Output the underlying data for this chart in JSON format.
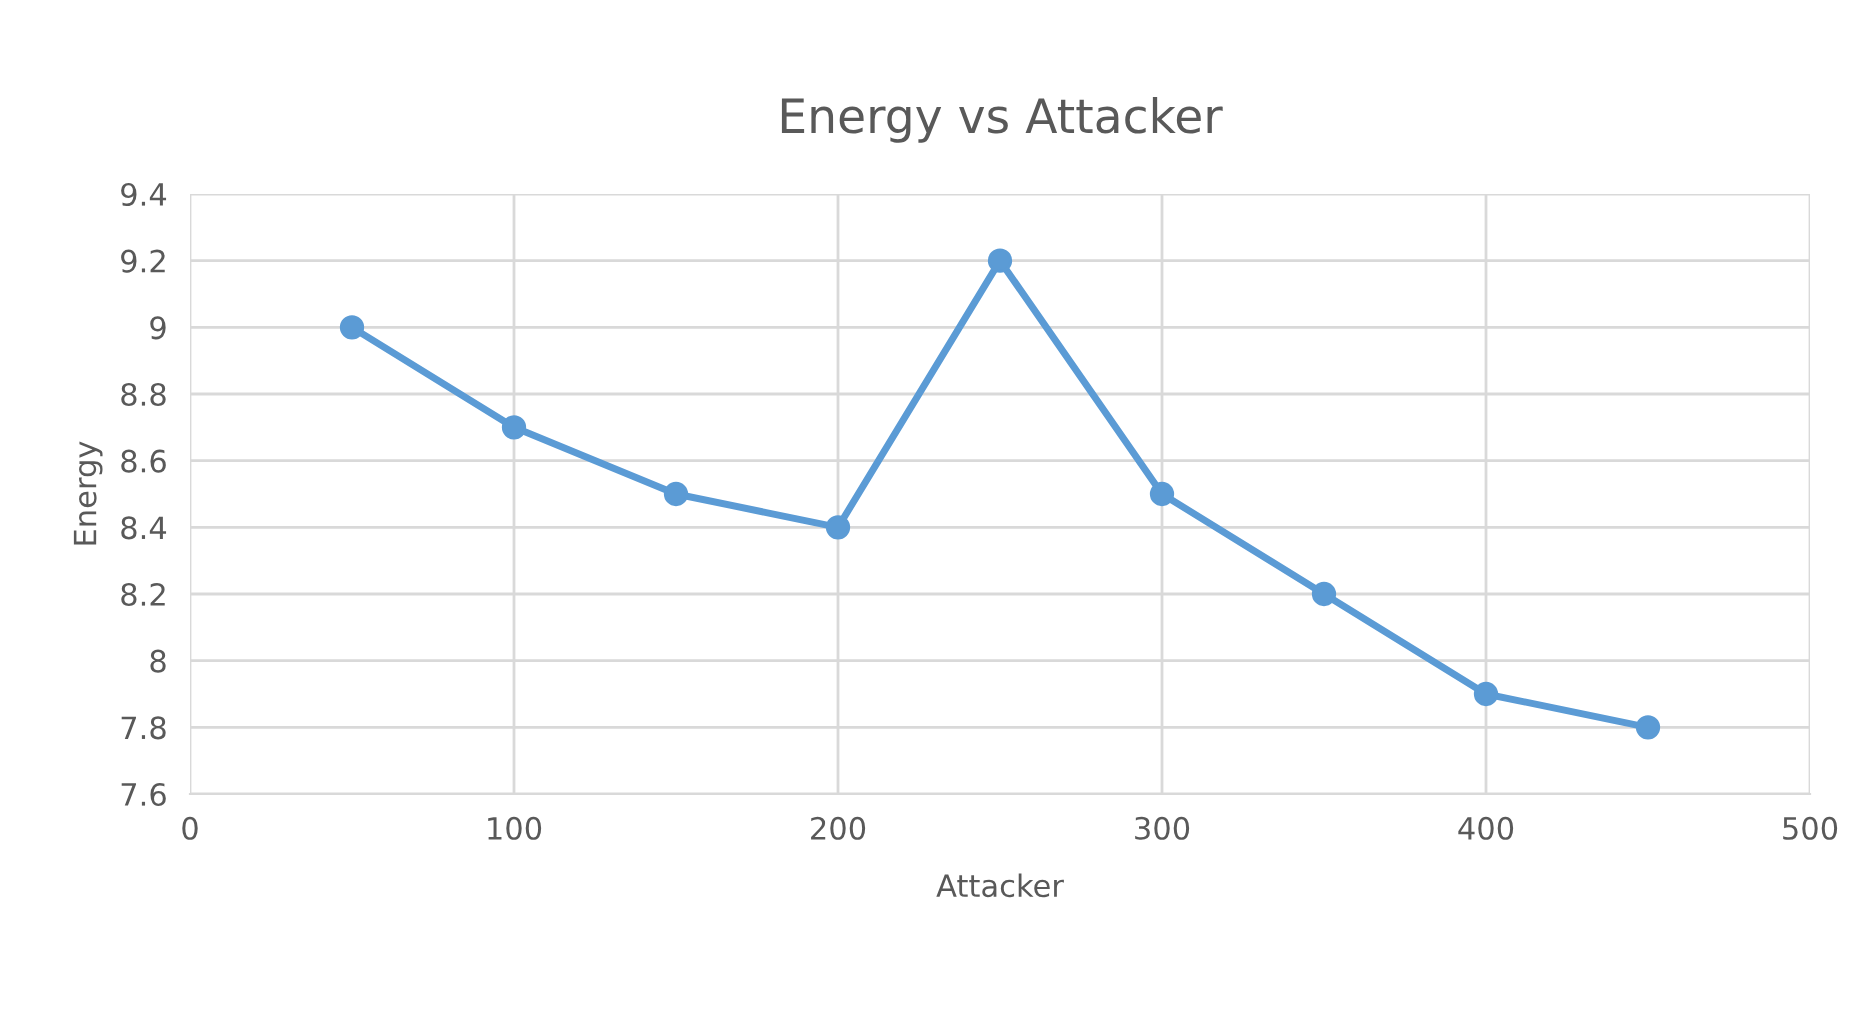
{
  "chart_data": {
    "type": "line",
    "title": "Energy vs Attacker",
    "xlabel": "Attacker",
    "ylabel": "Energy",
    "x": [
      50,
      100,
      150,
      200,
      250,
      300,
      350,
      400,
      450
    ],
    "series": [
      {
        "color": "#5b9bd5",
        "values": [
          9.0,
          8.7,
          8.5,
          8.4,
          9.2,
          8.5,
          8.2,
          7.9,
          7.8
        ]
      }
    ],
    "xlim": [
      0,
      500
    ],
    "xticks": [
      0,
      100,
      200,
      300,
      400,
      500
    ],
    "ylim": [
      7.6,
      9.4
    ],
    "yticks": [
      7.6,
      7.8,
      8,
      8.2,
      8.4,
      8.6,
      8.8,
      9,
      9.2,
      9.4
    ],
    "grid": true,
    "marker": "circle",
    "line_style": "solid"
  }
}
